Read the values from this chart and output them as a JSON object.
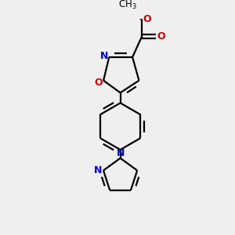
{
  "bg_color": "#efefef",
  "bond_color": "#000000",
  "n_color": "#0000cc",
  "o_color": "#cc0000",
  "line_width": 1.6,
  "doff_inner": 0.038,
  "figsize": [
    3.0,
    3.0
  ],
  "dpi": 100,
  "xlim": [
    -1.2,
    1.2
  ],
  "ylim": [
    -2.6,
    2.0
  ]
}
